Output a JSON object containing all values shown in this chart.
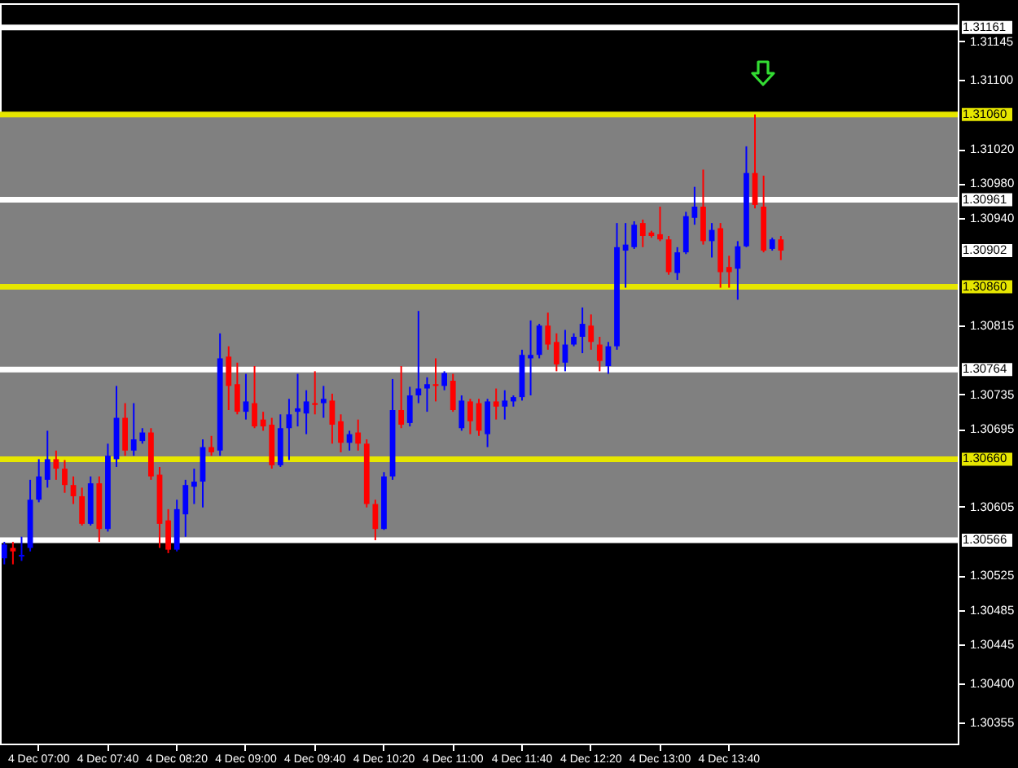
{
  "chart_data": {
    "type": "candlestick",
    "categories": [
      null,
      null,
      null,
      null,
      "4 Dec 07:00",
      null,
      null,
      null,
      null,
      null,
      null,
      null,
      "4 Dec 07:40",
      null,
      null,
      null,
      null,
      null,
      null,
      null,
      "4 Dec 08:20",
      null,
      null,
      null,
      null,
      null,
      null,
      null,
      "4 Dec 09:00",
      null,
      null,
      null,
      null,
      null,
      null,
      null,
      "4 Dec 09:40",
      null,
      null,
      null,
      null,
      null,
      null,
      null,
      "4 Dec 10:20",
      null,
      null,
      null,
      null,
      null,
      null,
      null,
      "4 Dec 11:00",
      null,
      null,
      null,
      null,
      null,
      null,
      null,
      "4 Dec 11:40",
      null,
      null,
      null,
      null,
      null,
      null,
      null,
      "4 Dec 12:20",
      null,
      null,
      null,
      null,
      null,
      null,
      null,
      "4 Dec 13:00",
      null,
      null,
      null,
      null,
      null,
      null,
      null,
      "4 Dec 13:40",
      null,
      null,
      null,
      null,
      null,
      null,
      null,
      null,
      null,
      null,
      null,
      null,
      null,
      null,
      null,
      null,
      null,
      null,
      null,
      null,
      null,
      null,
      null,
      null,
      null,
      null
    ],
    "ohlc": [
      [
        1.30545,
        1.30564,
        1.30538,
        1.30561
      ],
      [
        1.30557,
        1.30564,
        1.30538,
        1.30553
      ],
      [
        1.30547,
        1.3057,
        1.30542,
        1.30549
      ],
      [
        1.30557,
        1.30636,
        1.30553,
        1.30613
      ],
      [
        1.30613,
        1.3066,
        1.3061,
        1.3064
      ],
      [
        1.30636,
        1.30693,
        1.30627,
        1.3066
      ],
      [
        1.3066,
        1.3067,
        1.30636,
        1.30649
      ],
      [
        1.30649,
        1.30659,
        1.30621,
        1.3063
      ],
      [
        1.3063,
        1.3064,
        1.30608,
        1.30617
      ],
      [
        1.30617,
        1.30627,
        1.30583,
        1.30585
      ],
      [
        1.30585,
        1.3064,
        1.30583,
        1.30632
      ],
      [
        1.30632,
        1.3064,
        1.30564,
        1.30579
      ],
      [
        1.30579,
        1.30678,
        1.30576,
        1.30664
      ],
      [
        1.3066,
        1.30745,
        1.30651,
        1.30708
      ],
      [
        1.30708,
        1.30725,
        1.30664,
        1.3067
      ],
      [
        1.3067,
        1.30725,
        1.30664,
        1.30683
      ],
      [
        1.30681,
        1.30696,
        1.30678,
        1.30691
      ],
      [
        1.30691,
        1.30696,
        1.30636,
        1.3064
      ],
      [
        1.30642,
        1.30651,
        1.30557,
        1.30585
      ],
      [
        1.30589,
        1.30602,
        1.30551,
        1.30555
      ],
      [
        1.30555,
        1.30613,
        1.30553,
        1.30602
      ],
      [
        1.30596,
        1.30636,
        1.3057,
        1.3063
      ],
      [
        1.30628,
        1.30649,
        1.30608,
        1.30634
      ],
      [
        1.30634,
        1.30683,
        1.30604,
        1.30674
      ],
      [
        1.30674,
        1.30687,
        1.30664,
        1.30668
      ],
      [
        1.3067,
        1.30806,
        1.30664,
        1.30777
      ],
      [
        1.30779,
        1.30791,
        1.30717,
        1.30745
      ],
      [
        1.30747,
        1.30772,
        1.30712,
        1.30715
      ],
      [
        1.30715,
        1.30759,
        1.30706,
        1.30727
      ],
      [
        1.30725,
        1.30768,
        1.30696,
        1.30698
      ],
      [
        1.30706,
        1.30715,
        1.30693,
        1.30698
      ],
      [
        1.307,
        1.30708,
        1.30649,
        1.30653
      ],
      [
        1.30653,
        1.30712,
        1.30651,
        1.30696
      ],
      [
        1.30696,
        1.3073,
        1.30659,
        1.30712
      ],
      [
        1.30715,
        1.30759,
        1.30698,
        1.30719
      ],
      [
        1.30713,
        1.3074,
        1.30689,
        1.30727
      ],
      [
        1.30725,
        1.30762,
        1.30712,
        1.30723
      ],
      [
        1.30725,
        1.30745,
        1.30708,
        1.3073
      ],
      [
        1.30728,
        1.30736,
        1.30678,
        1.307
      ],
      [
        1.30704,
        1.30712,
        1.30668,
        1.30679
      ],
      [
        1.30679,
        1.30693,
        1.3067,
        1.30689
      ],
      [
        1.30691,
        1.30706,
        1.3067,
        1.30678
      ],
      [
        1.30678,
        1.30683,
        1.30604,
        1.30608
      ],
      [
        1.30608,
        1.30613,
        1.30566,
        1.30579
      ],
      [
        1.30579,
        1.30645,
        1.30578,
        1.3064
      ],
      [
        1.3064,
        1.30753,
        1.30636,
        1.30717
      ],
      [
        1.30717,
        1.30768,
        1.30696,
        1.307
      ],
      [
        1.30702,
        1.30744,
        1.30698,
        1.30734
      ],
      [
        1.30734,
        1.30832,
        1.30725,
        1.30742
      ],
      [
        1.30742,
        1.30755,
        1.30715,
        1.30747
      ],
      [
        1.30747,
        1.30777,
        1.30727,
        1.30745
      ],
      [
        1.30745,
        1.30762,
        1.3074,
        1.3076
      ],
      [
        1.30751,
        1.30759,
        1.30715,
        1.30717
      ],
      [
        1.30696,
        1.30734,
        1.30693,
        1.30728
      ],
      [
        1.30727,
        1.3073,
        1.30689,
        1.30704
      ],
      [
        1.30725,
        1.3073,
        1.30687,
        1.30693
      ],
      [
        1.30689,
        1.3073,
        1.30674,
        1.30727
      ],
      [
        1.30727,
        1.30742,
        1.30706,
        1.30721
      ],
      [
        1.30721,
        1.3074,
        1.30706,
        1.30728
      ],
      [
        1.30727,
        1.30734,
        1.30721,
        1.30732
      ],
      [
        1.30732,
        1.30787,
        1.30728,
        1.30781
      ],
      [
        1.30777,
        1.30821,
        1.30734,
        1.30781
      ],
      [
        1.30781,
        1.30817,
        1.30777,
        1.30815
      ],
      [
        1.30815,
        1.3083,
        1.30787,
        1.30793
      ],
      [
        1.30796,
        1.30806,
        1.30762,
        1.3077
      ],
      [
        1.30772,
        1.3081,
        1.30762,
        1.30793
      ],
      [
        1.30793,
        1.30806,
        1.30791,
        1.30802
      ],
      [
        1.30802,
        1.30836,
        1.30783,
        1.30817
      ],
      [
        1.30815,
        1.30828,
        1.30787,
        1.30796
      ],
      [
        1.30793,
        1.30802,
        1.30762,
        1.30774
      ],
      [
        1.30768,
        1.30796,
        1.30759,
        1.30791
      ],
      [
        1.30791,
        1.30934,
        1.30787,
        1.30906
      ],
      [
        1.30902,
        1.30934,
        1.30859,
        1.30909
      ],
      [
        1.30906,
        1.30936,
        1.30904,
        1.30932
      ],
      [
        1.30934,
        1.30938,
        1.30906,
        1.30919
      ],
      [
        1.30923,
        1.30925,
        1.30917,
        1.30919
      ],
      [
        1.30921,
        1.30953,
        1.30913,
        1.30915
      ],
      [
        1.30915,
        1.30919,
        1.30874,
        1.30877
      ],
      [
        1.30876,
        1.30906,
        1.30868,
        1.309
      ],
      [
        1.309,
        1.30947,
        1.30898,
        1.30942
      ],
      [
        1.3094,
        1.30976,
        1.30932,
        1.30953
      ],
      [
        1.30953,
        1.30996,
        1.30909,
        1.30913
      ],
      [
        1.30913,
        1.30934,
        1.30894,
        1.30926
      ],
      [
        1.30928,
        1.30934,
        1.30859,
        1.30877
      ],
      [
        1.30883,
        1.30896,
        1.30859,
        1.30877
      ],
      [
        1.30881,
        1.30913,
        1.30845,
        1.30907
      ],
      [
        1.30907,
        1.31023,
        1.30906,
        1.30992
      ],
      [
        1.30992,
        1.3106,
        1.30951,
        1.30955
      ],
      [
        1.30953,
        1.30989,
        1.309,
        1.30902
      ],
      [
        1.30904,
        1.30917,
        1.30902,
        1.30915
      ],
      [
        1.30915,
        1.30919,
        1.30891,
        1.30902
      ],
      null,
      null,
      null,
      null,
      null,
      null,
      null,
      null,
      null,
      null,
      null,
      null,
      null,
      null,
      null,
      null,
      null,
      null,
      null,
      null
    ],
    "colors": [
      "#0000ff",
      "#ff0000",
      "#0000ff",
      "#0000ff",
      "#0000ff",
      "#0000ff",
      "#ff0000",
      "#ff0000",
      "#ff0000",
      "#ff0000",
      "#0000ff",
      "#ff0000",
      "#0000ff",
      "#0000ff",
      "#ff0000",
      "#0000ff",
      "#0000ff",
      "#ff0000",
      "#ff0000",
      "#ff0000",
      "#0000ff",
      "#0000ff",
      "#0000ff",
      "#0000ff",
      "#ff0000",
      "#0000ff",
      "#ff0000",
      "#ff0000",
      "#0000ff",
      "#ff0000",
      "#ff0000",
      "#ff0000",
      "#0000ff",
      "#0000ff",
      "#0000ff",
      "#0000ff",
      "#ff0000",
      "#0000ff",
      "#ff0000",
      "#ff0000",
      "#0000ff",
      "#ff0000",
      "#ff0000",
      "#ff0000",
      "#0000ff",
      "#0000ff",
      "#ff0000",
      "#0000ff",
      "#0000ff",
      "#0000ff",
      "#ff0000",
      "#0000ff",
      "#ff0000",
      "#0000ff",
      "#ff0000",
      "#ff0000",
      "#0000ff",
      "#ff0000",
      "#0000ff",
      "#0000ff",
      "#0000ff",
      "#0000ff",
      "#0000ff",
      "#ff0000",
      "#ff0000",
      "#0000ff",
      "#0000ff",
      "#0000ff",
      "#ff0000",
      "#ff0000",
      "#0000ff",
      "#0000ff",
      "#0000ff",
      "#0000ff",
      "#ff0000",
      "#ff0000",
      "#ff0000",
      "#ff0000",
      "#0000ff",
      "#0000ff",
      "#0000ff",
      "#ff0000",
      "#0000ff",
      "#ff0000",
      "#ff0000",
      "#0000ff",
      "#0000ff",
      "#ff0000",
      "#ff0000",
      "#0000ff",
      "#ff0000",
      null,
      null,
      null,
      null,
      null,
      null,
      null,
      null,
      null,
      null,
      null,
      null,
      null,
      null,
      null,
      null,
      null,
      null,
      null,
      null
    ],
    "ylim": [
      1.3033,
      1.31189
    ],
    "yticks": [
      {
        "value": 1.31145,
        "label": "1.31145"
      },
      {
        "value": 1.311,
        "label": "1.31100"
      },
      {
        "value": 1.3102,
        "label": "1.31020"
      },
      {
        "value": 1.3098,
        "label": "1.30980"
      },
      {
        "value": 1.3094,
        "label": "1.30940"
      },
      {
        "value": 1.30815,
        "label": "1.30815"
      },
      {
        "value": 1.30735,
        "label": "1.30735"
      },
      {
        "value": 1.30695,
        "label": "1.30695"
      },
      {
        "value": 1.30605,
        "label": "1.30605"
      },
      {
        "value": 1.30525,
        "label": "1.30525"
      },
      {
        "value": 1.30485,
        "label": "1.30485"
      },
      {
        "value": 1.30445,
        "label": "1.30445"
      },
      {
        "value": 1.304,
        "label": "1.30400"
      },
      {
        "value": 1.30355,
        "label": "1.30355"
      }
    ],
    "ref_lines": [
      {
        "axis": "y",
        "value": 1.31161,
        "label": "1.31161",
        "color": "#ffffff"
      },
      {
        "axis": "y",
        "value": 1.3106,
        "label": "1.31060",
        "color": "#e6e600"
      },
      {
        "axis": "y",
        "value": 1.30961,
        "label": "1.30961",
        "color": "#ffffff"
      },
      {
        "axis": "y",
        "value": 1.3086,
        "label": "1.30860",
        "color": "#e6e600"
      },
      {
        "axis": "y",
        "value": 1.30764,
        "label": "1.30764",
        "color": "#ffffff"
      },
      {
        "axis": "y",
        "value": 1.3066,
        "label": "1.30660",
        "color": "#e6e600"
      },
      {
        "axis": "y",
        "value": 1.30566,
        "label": "1.30566",
        "color": "#ffffff"
      }
    ],
    "bands": [
      {
        "axis": "y",
        "from": 1.30566,
        "to": 1.3106,
        "color": "#808080"
      }
    ],
    "annotations": [
      "1.30902"
    ]
  }
}
